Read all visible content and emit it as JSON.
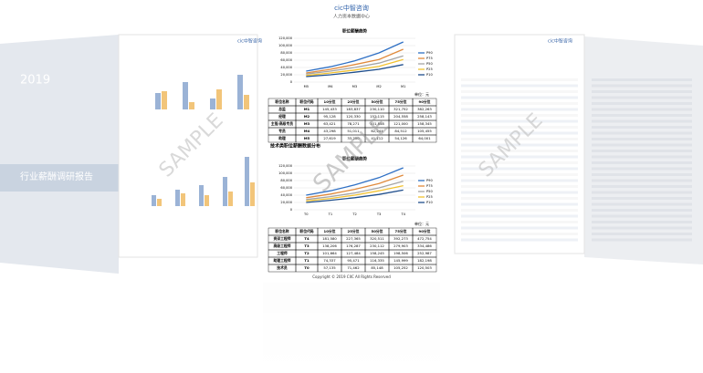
{
  "header": {
    "logo": "cic中智咨询",
    "subtitle": "人力资本数据中心"
  },
  "cover": {
    "year": "2019",
    "title": "行业薪酬调研报告"
  },
  "watermark": "SAMPLE",
  "section_heading": "技术类职位薪酬数据分布",
  "copyright": "Copyright © 2019 CIIC All Rights Reserved",
  "chart_data": [
    {
      "type": "line",
      "title": "职位薪酬趋势",
      "categories": [
        "M5",
        "M4",
        "M3",
        "M2",
        "M1"
      ],
      "ylim": [
        0,
        120000
      ],
      "yticks": [
        0,
        {
          "value": 20000,
          "label": "20,000"
        },
        {
          "value": 40000,
          "label": "40,000"
        },
        {
          "value": 60000,
          "label": "60,000"
        },
        {
          "value": 80000,
          "label": "80,000"
        },
        {
          "value": 100000,
          "label": "100,000"
        },
        {
          "value": 120000,
          "label": "120,000"
        }
      ],
      "series": [
        {
          "name": "P90",
          "color": "#2e6fc4",
          "values": [
            30000,
            42000,
            58000,
            80000,
            110000
          ]
        },
        {
          "name": "P75",
          "color": "#e08a3c",
          "values": [
            25000,
            35000,
            48000,
            62000,
            90000
          ]
        },
        {
          "name": "P50",
          "color": "#a5a5a5",
          "values": [
            22000,
            30000,
            40000,
            52000,
            72000
          ]
        },
        {
          "name": "P25",
          "color": "#f2c230",
          "values": [
            18000,
            25000,
            33000,
            43000,
            62000
          ]
        },
        {
          "name": "P10",
          "color": "#1f4e8c",
          "values": [
            15000,
            20000,
            27000,
            35000,
            48000
          ]
        }
      ]
    },
    {
      "type": "line",
      "title": "职位薪酬趋势",
      "categories": [
        "T0",
        "T1",
        "T2",
        "T3",
        "T4"
      ],
      "ylim": [
        0,
        120000
      ],
      "yticks": [
        0,
        {
          "value": 20000,
          "label": "20,000"
        },
        {
          "value": 40000,
          "label": "40,000"
        },
        {
          "value": 60000,
          "label": "60,000"
        },
        {
          "value": 80000,
          "label": "80,000"
        },
        {
          "value": 100000,
          "label": "100,000"
        },
        {
          "value": 120000,
          "label": "120,000"
        }
      ],
      "series": [
        {
          "name": "P90",
          "color": "#2e6fc4",
          "values": [
            40000,
            52000,
            68000,
            88000,
            115000
          ]
        },
        {
          "name": "P75",
          "color": "#e08a3c",
          "values": [
            33000,
            43000,
            56000,
            72000,
            95000
          ]
        },
        {
          "name": "P50",
          "color": "#a5a5a5",
          "values": [
            28000,
            36000,
            46000,
            60000,
            78000
          ]
        },
        {
          "name": "P25",
          "color": "#f2c230",
          "values": [
            24000,
            31000,
            40000,
            52000,
            66000
          ]
        },
        {
          "name": "P10",
          "color": "#1f4e8c",
          "values": [
            20000,
            26000,
            33000,
            42000,
            54000
          ]
        }
      ]
    }
  ],
  "tables": [
    {
      "unit": "单位：元",
      "columns": [
        "职位名称",
        "职位代码",
        "10分位",
        "25分位",
        "50分位",
        "75分位",
        "90分位"
      ],
      "rows": [
        [
          "总监",
          "M1",
          "145,433",
          "183,837",
          "230,110",
          "321,752",
          "382,263"
        ],
        [
          "经理",
          "M2",
          "95,128",
          "120,330",
          "152,115",
          "204,558",
          "258,143"
        ],
        [
          "主管/高级专员",
          "M3",
          "63,421",
          "78,271",
          "101,858",
          "121,000",
          "158,345"
        ],
        [
          "专员",
          "M4",
          "43,298",
          "51,011",
          "62,244",
          "84,512",
          "105,455"
        ],
        [
          "助理",
          "M5",
          "27,619",
          "33,250",
          "41,112",
          "54,126",
          "64,001"
        ]
      ]
    },
    {
      "unit": "单位：元",
      "columns": [
        "职位名称",
        "职位代码",
        "10分位",
        "25分位",
        "50分位",
        "75分位",
        "90分位"
      ],
      "rows": [
        [
          "资深工程师",
          "T4",
          "181,580",
          "227,365",
          "320,511",
          "392,273",
          "472,754"
        ],
        [
          "高级工程师",
          "T3",
          "138,206",
          "176,287",
          "230,112",
          "279,903",
          "334,486"
        ],
        [
          "工程师",
          "T2",
          "101,664",
          "127,484",
          "158,245",
          "198,506",
          "252,987"
        ],
        [
          "助理工程师",
          "T1",
          "74,337",
          "95,471",
          "116,335",
          "145,999",
          "182,198"
        ],
        [
          "技术员",
          "T0",
          "57,135",
          "71,462",
          "85,148",
          "105,252",
          "120,503"
        ]
      ]
    }
  ]
}
